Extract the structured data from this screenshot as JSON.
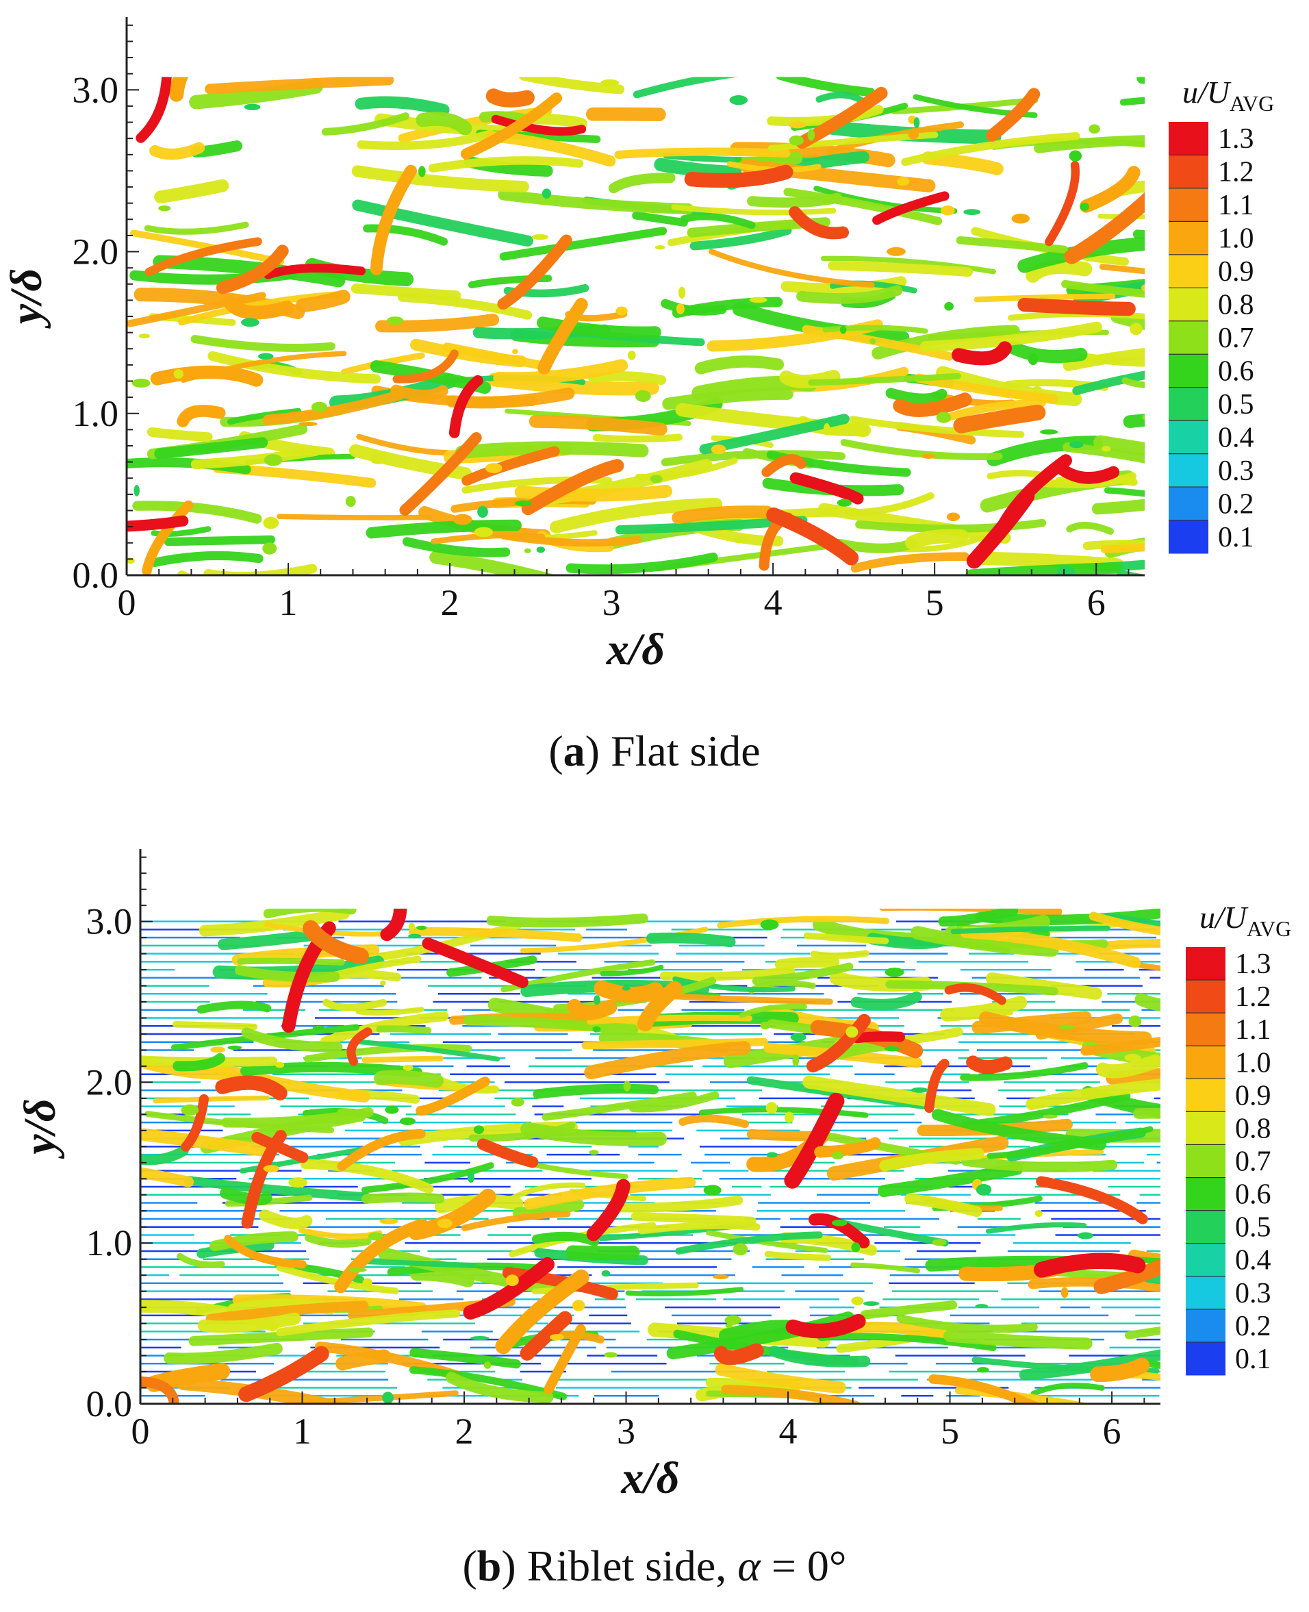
{
  "figure": {
    "panels": [
      {
        "id": "a",
        "x_label": "x/δ",
        "y_label": "y/δ",
        "x_ticks": [
          "0",
          "1",
          "2",
          "3",
          "4",
          "5",
          "6"
        ],
        "y_ticks": [
          "0.0",
          "1.0",
          "2.0",
          "3.0"
        ],
        "x_range": [
          0,
          6.3
        ],
        "y_range": [
          0,
          3.45
        ],
        "colorbar": {
          "title_main": "u/U",
          "title_sub": "AVG",
          "levels": [
            "1.3",
            "1.2",
            "1.1",
            "1.0",
            "0.9",
            "0.8",
            "0.7",
            "0.6",
            "0.5",
            "0.4",
            "0.3",
            "0.2",
            "0.1"
          ]
        },
        "caption": {
          "tag": "a",
          "text": "Flat side"
        },
        "riblet_lines": false,
        "seed": 11
      },
      {
        "id": "b",
        "x_label": "x/δ",
        "y_label": "y/δ",
        "x_ticks": [
          "0",
          "1",
          "2",
          "3",
          "4",
          "5",
          "6"
        ],
        "y_ticks": [
          "0.0",
          "1.0",
          "2.0",
          "3.0"
        ],
        "x_range": [
          0,
          6.3
        ],
        "y_range": [
          0,
          3.45
        ],
        "colorbar": {
          "title_main": "u/U",
          "title_sub": "AVG",
          "levels": [
            "1.3",
            "1.2",
            "1.1",
            "1.0",
            "0.9",
            "0.8",
            "0.7",
            "0.6",
            "0.5",
            "0.4",
            "0.3",
            "0.2",
            "0.1"
          ]
        },
        "caption": {
          "tag": "b",
          "text_before": "Riblet side, ",
          "alpha": "α",
          "text_after": " = 0°"
        },
        "riblet_lines": true,
        "seed": 29
      }
    ],
    "colors": {
      "colorbar_stops": [
        "#e8101a",
        "#f04a16",
        "#f57a12",
        "#f9a60f",
        "#fbcf16",
        "#d8e818",
        "#8ee01a",
        "#35d41c",
        "#22d05a",
        "#18d2a6",
        "#16c8e0",
        "#1a8cf0",
        "#1a3ef0"
      ]
    }
  }
}
